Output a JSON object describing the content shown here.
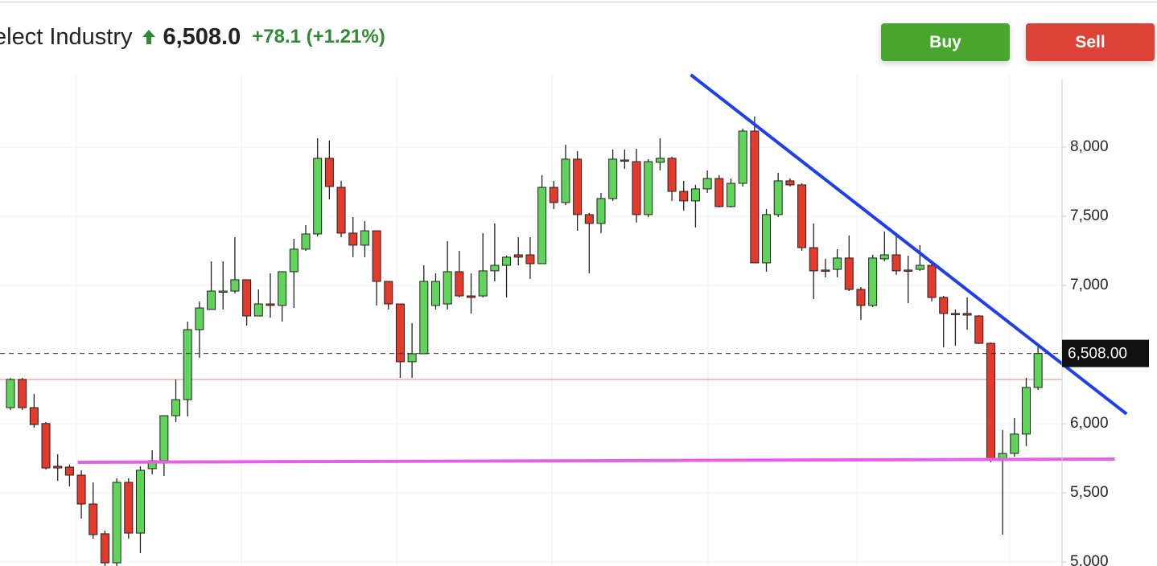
{
  "header": {
    "title": "elect Industry",
    "price": "6,508.0",
    "change": "+78.1 (+1.21%)"
  },
  "buttons": {
    "buy": "Buy",
    "sell": "Sell"
  },
  "chart_data": {
    "type": "candlestick",
    "ylim": [
      4971,
      8530
    ],
    "yticks": [
      {
        "value": 5000,
        "label": "5,000"
      },
      {
        "value": 5500,
        "label": "5,500"
      },
      {
        "value": 6000,
        "label": "6,000"
      },
      {
        "value": 6500,
        "label": "6,500"
      },
      {
        "value": 7000,
        "label": "7,000"
      },
      {
        "value": 7500,
        "label": "7,500"
      },
      {
        "value": 8000,
        "label": "8,000"
      }
    ],
    "up_color": "#5fd35a",
    "down_color": "#e43a2c",
    "open": [
      6116,
      6320,
      6116,
      6001,
      5692,
      5686,
      5628,
      5419,
      5204,
      4994,
      5576,
      5209,
      5675,
      5733,
      6058,
      6174,
      6680,
      6826,
      6953,
      6959,
      7041,
      6779,
      6866,
      6855,
      7099,
      7262,
      7372,
      7919,
      7709,
      7378,
      7291,
      7395,
      7029,
      6866,
      6448,
      6506,
      6855,
      6866,
      7099,
      6924,
      6924,
      7105,
      7145,
      7221,
      7221,
      7157,
      7709,
      7599,
      7913,
      7512,
      7448,
      7628,
      7907,
      7895,
      7512,
      7890,
      7919,
      7680,
      7611,
      7698,
      7773,
      7570,
      7738,
      8116,
      7163,
      7512,
      7756,
      7727,
      7273,
      7111,
      7116,
      7198,
      6971,
      6855,
      7192,
      7221,
      7111,
      7116,
      7145,
      6913,
      6797,
      6797,
      6779,
      6581,
      5750,
      5785,
      5925,
      6262
    ],
    "high": [
      6331,
      6331,
      6215,
      6012,
      5779,
      5704,
      5663,
      5576,
      5227,
      5605,
      5605,
      5692,
      5808,
      6058,
      6320,
      6738,
      6884,
      7174,
      7174,
      7349,
      7041,
      6971,
      7087,
      7099,
      7337,
      7436,
      8064,
      8047,
      7756,
      7494,
      7465,
      7395,
      7029,
      6866,
      6727,
      7145,
      7087,
      7320,
      7250,
      7087,
      7378,
      7448,
      7215,
      7349,
      7349,
      7797,
      7756,
      8017,
      7971,
      7523,
      7669,
      7983,
      7983,
      7988,
      7913,
      8064,
      7930,
      7756,
      7727,
      7831,
      7797,
      7773,
      8134,
      8221,
      7552,
      7814,
      7773,
      7738,
      7448,
      7192,
      7262,
      7361,
      6988,
      7221,
      7390,
      7378,
      7215,
      7291,
      7174,
      6924,
      6826,
      6913,
      6785,
      6587,
      5954,
      6041,
      6331,
      6564
    ],
    "low": [
      6099,
      6099,
      5971,
      5669,
      5587,
      5547,
      5314,
      5169,
      4971,
      4971,
      5169,
      5064,
      5634,
      5622,
      6012,
      6053,
      6477,
      6826,
      6826,
      6942,
      6709,
      6779,
      6767,
      6738,
      6837,
      7250,
      7355,
      7622,
      7349,
      7204,
      7204,
      6855,
      6826,
      6331,
      6331,
      6506,
      6826,
      6826,
      6913,
      6797,
      6913,
      7029,
      6913,
      7145,
      7047,
      7157,
      7552,
      7581,
      7395,
      7087,
      7378,
      7611,
      7843,
      7454,
      7494,
      7831,
      7611,
      7541,
      7419,
      7669,
      7564,
      7564,
      7715,
      7163,
      7099,
      7494,
      7715,
      7250,
      6901,
      7058,
      7058,
      6959,
      6750,
      6843,
      7174,
      7076,
      6872,
      7105,
      6884,
      6552,
      6564,
      6680,
      6576,
      5721,
      5198,
      5762,
      5838,
      6244
    ],
    "close": [
      6320,
      6116,
      5994,
      5680,
      5680,
      5628,
      5419,
      5198,
      4994,
      5576,
      5209,
      5663,
      5733,
      6058,
      6174,
      6680,
      6837,
      6959,
      6959,
      7041,
      6779,
      6866,
      6855,
      7099,
      7262,
      7372,
      7919,
      7715,
      7378,
      7291,
      7395,
      7029,
      6866,
      6448,
      6506,
      7029,
      7029,
      7099,
      6924,
      6913,
      7105,
      7145,
      7204,
      7204,
      7157,
      7709,
      7599,
      7913,
      7512,
      7448,
      7628,
      7913,
      7901,
      7512,
      7895,
      7919,
      7680,
      7611,
      7698,
      7773,
      7570,
      7738,
      8116,
      7163,
      7512,
      7756,
      7727,
      7273,
      7105,
      7105,
      7198,
      6971,
      6855,
      7198,
      7221,
      7105,
      7105,
      7145,
      6913,
      6797,
      6791,
      6785,
      6581,
      5733,
      5785,
      5925,
      6262,
      6508
    ],
    "last_price": {
      "value": 6508,
      "label": "6,508.00"
    },
    "ref_line": {
      "value": 6320,
      "color": "#e88a8a"
    },
    "lines": [
      {
        "color": "#1e3ff0",
        "x": [
          57.6,
          94.5
        ],
        "y": [
          8523,
          6070
        ]
      },
      {
        "color": "#e85ee8",
        "x": [
          5.7,
          93.5
        ],
        "y": [
          5721,
          5744
        ]
      }
    ]
  }
}
